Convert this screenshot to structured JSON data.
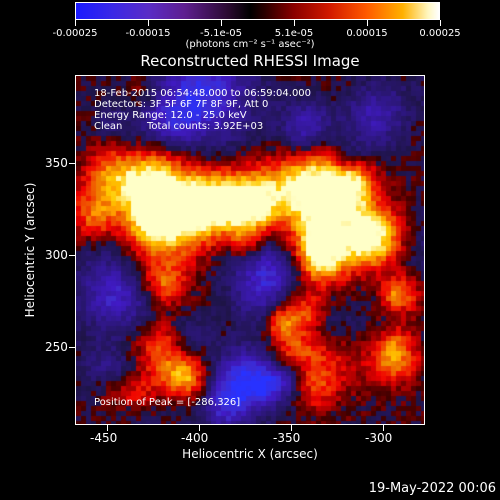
{
  "colorbar": {
    "labels": [
      "-0.00025",
      "-0.00015",
      "-5.1e-05",
      "5.1e-05",
      "0.00015",
      "0.00025"
    ],
    "units": "(photons cm⁻² s⁻¹ asec⁻²)"
  },
  "title": "Reconstructed RHESSI Image",
  "info": {
    "line1": "18-Feb-2015 06:54:48.000 to 06:59:04.000",
    "line2": "Detectors: 3F 5F 6F 7F 8F 9F, Att 0",
    "line3": "Energy Range: 12.0 - 25.0 keV",
    "line4_left": "Clean",
    "line4_right": "Total counts: 3.92E+03"
  },
  "peak": "Position of Peak = [-286,326]",
  "axes": {
    "xlabel": "Heliocentric X (arcsec)",
    "ylabel": "Heliocentric Y (arcsec)",
    "xticks": [
      "-450",
      "-400",
      "-350",
      "-300"
    ],
    "yticks": [
      "350",
      "300",
      "250"
    ]
  },
  "timestamp": "19-May-2022 00:06",
  "chart_data": {
    "type": "heatmap",
    "title": "Reconstructed RHESSI Image",
    "xlabel": "Heliocentric X (arcsec)",
    "ylabel": "Heliocentric Y (arcsec)",
    "xlim": [
      -460,
      -270
    ],
    "ylim": [
      205,
      395
    ],
    "colorbar_range": [
      -0.00025,
      0.00025
    ],
    "peak_position": [
      -286,
      326
    ]
  }
}
